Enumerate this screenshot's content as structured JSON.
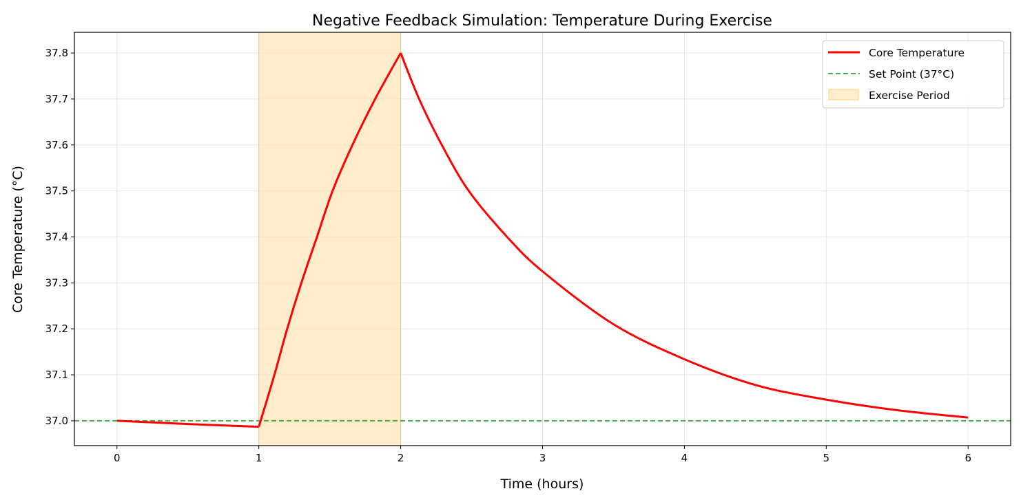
{
  "chart_data": {
    "type": "line",
    "title": "Negative Feedback Simulation: Temperature During Exercise",
    "xlabel": "Time (hours)",
    "ylabel": "Core Temperature (°C)",
    "xlim": [
      -0.3,
      6.3
    ],
    "ylim": [
      36.946,
      37.845
    ],
    "xticks": [
      0,
      1,
      2,
      3,
      4,
      5,
      6
    ],
    "xtick_labels": [
      "0",
      "1",
      "2",
      "3",
      "4",
      "5",
      "6"
    ],
    "yticks": [
      37.0,
      37.1,
      37.2,
      37.3,
      37.4,
      37.5,
      37.6,
      37.7,
      37.8
    ],
    "ytick_labels": [
      "37.0",
      "37.1",
      "37.2",
      "37.3",
      "37.4",
      "37.5",
      "37.6",
      "37.7",
      "37.8"
    ],
    "grid": true,
    "legend_position": "top-right",
    "series": [
      {
        "name": "Core Temperature",
        "color": "#ff0000",
        "style": "solid",
        "segments": [
          {
            "x": [
              0,
              0.5,
              1
            ],
            "y": [
              37.0,
              36.993,
              36.987
            ]
          },
          {
            "x": [
              1,
              1.11,
              1.2,
              1.3,
              1.41,
              1.52,
              1.66,
              1.82,
              2
            ],
            "y": [
              36.987,
              37.1,
              37.2,
              37.3,
              37.4,
              37.5,
              37.6,
              37.7,
              37.8
            ]
          },
          {
            "x": [
              2,
              2.13,
              2.29,
              2.48,
              2.75,
              3,
              3.5,
              4,
              4.5,
              5,
              5.5,
              6
            ],
            "y": [
              37.8,
              37.7,
              37.6,
              37.5,
              37.4,
              37.325,
              37.21,
              37.134,
              37.078,
              37.046,
              37.023,
              37.007
            ]
          }
        ]
      },
      {
        "name": "Set Point (37°C)",
        "color": "#2ca02c",
        "style": "dashed",
        "y": 37.0
      }
    ],
    "shaded_regions": [
      {
        "name": "Exercise Period",
        "x": [
          1,
          2
        ],
        "color": "#ffe4b3"
      }
    ]
  }
}
